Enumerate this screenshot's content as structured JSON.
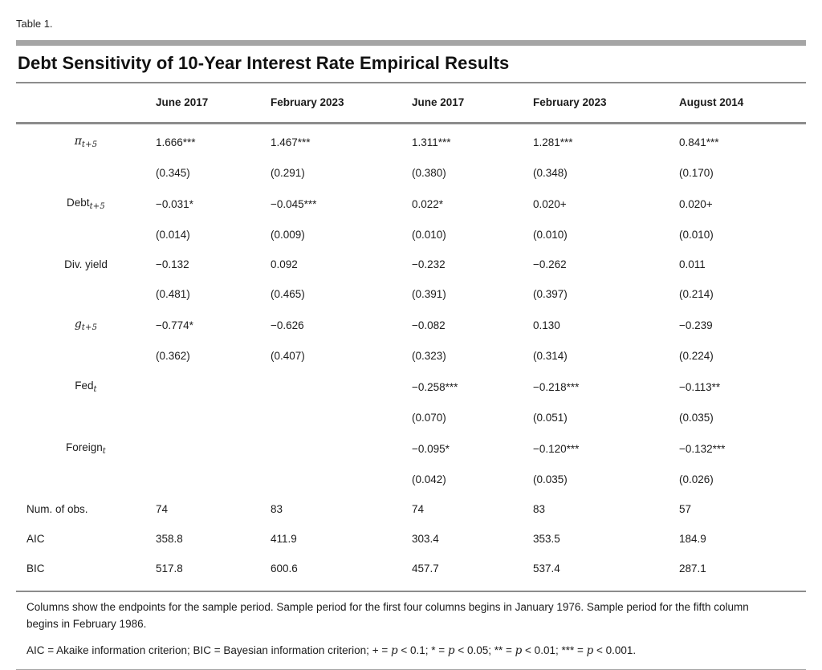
{
  "page": {
    "table_label": "Table 1.",
    "title": "Debt Sensitivity of 10-Year Interest Rate Empirical Results"
  },
  "table": {
    "columns": [
      "June 2017",
      "February 2023",
      "June 2017",
      "February 2023",
      "August 2014"
    ],
    "rows": [
      {
        "label": {
          "base": "π",
          "sub": "t+5",
          "math": true
        },
        "stat": false,
        "values": [
          "1.666***",
          "1.467***",
          "1.311***",
          "1.281***",
          "0.841***"
        ]
      },
      {
        "label": null,
        "stat": false,
        "values": [
          "(0.345)",
          "(0.291)",
          "(0.380)",
          "(0.348)",
          "(0.170)"
        ]
      },
      {
        "label": {
          "base": "Debt",
          "sub": "t+5",
          "math": false
        },
        "stat": false,
        "values": [
          "−0.031*",
          "−0.045***",
          "0.022*",
          "0.020+",
          "0.020+"
        ]
      },
      {
        "label": null,
        "stat": false,
        "values": [
          "(0.014)",
          "(0.009)",
          "(0.010)",
          "(0.010)",
          "(0.010)"
        ]
      },
      {
        "label": {
          "base": "Div. yield",
          "sub": "",
          "math": false
        },
        "stat": false,
        "values": [
          "−0.132",
          "0.092",
          "−0.232",
          "−0.262",
          "0.011"
        ]
      },
      {
        "label": null,
        "stat": false,
        "values": [
          "(0.481)",
          "(0.465)",
          "(0.391)",
          "(0.397)",
          "(0.214)"
        ]
      },
      {
        "label": {
          "base": "g",
          "sub": "t+5",
          "math": true
        },
        "stat": false,
        "values": [
          "−0.774*",
          "−0.626",
          "−0.082",
          "0.130",
          "−0.239"
        ]
      },
      {
        "label": null,
        "stat": false,
        "values": [
          "(0.362)",
          "(0.407)",
          "(0.323)",
          "(0.314)",
          "(0.224)"
        ]
      },
      {
        "label": {
          "base": "Fed",
          "sub": "t",
          "math": false
        },
        "stat": false,
        "values": [
          "",
          "",
          "−0.258***",
          "−0.218***",
          "−0.113**"
        ]
      },
      {
        "label": null,
        "stat": false,
        "values": [
          "",
          "",
          "(0.070)",
          "(0.051)",
          "(0.035)"
        ]
      },
      {
        "label": {
          "base": "Foreign",
          "sub": "t",
          "math": false
        },
        "stat": false,
        "values": [
          "",
          "",
          "−0.095*",
          "−0.120***",
          "−0.132***"
        ]
      },
      {
        "label": null,
        "stat": false,
        "values": [
          "",
          "",
          "(0.042)",
          "(0.035)",
          "(0.026)"
        ]
      },
      {
        "label": {
          "base": "Num. of obs.",
          "sub": "",
          "math": false
        },
        "stat": true,
        "values": [
          "74",
          "83",
          "74",
          "83",
          "57"
        ]
      },
      {
        "label": {
          "base": "AIC",
          "sub": "",
          "math": false
        },
        "stat": true,
        "values": [
          "358.8",
          "411.9",
          "303.4",
          "353.5",
          "184.9"
        ]
      },
      {
        "label": {
          "base": "BIC",
          "sub": "",
          "math": false
        },
        "stat": true,
        "values": [
          "517.8",
          "600.6",
          "457.7",
          "537.4",
          "287.1"
        ]
      }
    ]
  },
  "footnotes": {
    "note1": "Columns show the endpoints for the sample period. Sample period for the first four columns begins in January 1976. Sample period for the fifth column begins in February 1986.",
    "note2_segments": [
      {
        "text": "AIC = Akaike information criterion; BIC = Bayesian information criterion; + = ",
        "italic": false
      },
      {
        "text": "p",
        "italic": true
      },
      {
        "text": " < 0.1; * = ",
        "italic": false
      },
      {
        "text": "p",
        "italic": true
      },
      {
        "text": " < 0.05; ** = ",
        "italic": false
      },
      {
        "text": "p",
        "italic": true
      },
      {
        "text": " < 0.01; *** = ",
        "italic": false
      },
      {
        "text": "p",
        "italic": true
      },
      {
        "text": " < 0.001.",
        "italic": false
      }
    ]
  },
  "colors": {
    "rule_thick": "#a5a5a5",
    "rule_thin": "#8c8c8c",
    "text": "#1f1f1f"
  }
}
